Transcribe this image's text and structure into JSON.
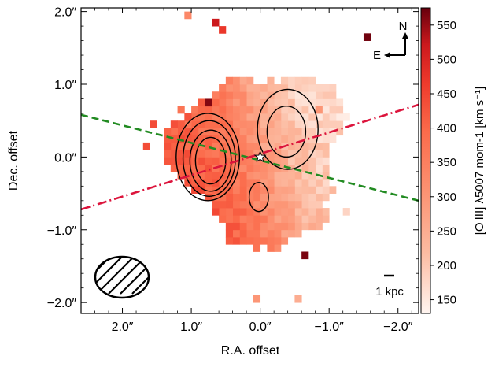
{
  "chart_data": {
    "type": "heatmap",
    "xlabel": "R.A. offset",
    "ylabel": "Dec. offset",
    "xlim": [
      2.6,
      -2.3
    ],
    "ylim": [
      -2.15,
      2.05
    ],
    "x_ticks": [
      {
        "value": 2.0,
        "label": "2.0″"
      },
      {
        "value": 1.0,
        "label": "1.0″"
      },
      {
        "value": 0.0,
        "label": "0.0″"
      },
      {
        "value": -1.0,
        "label": "−1.0″"
      },
      {
        "value": -2.0,
        "label": "−2.0″"
      }
    ],
    "y_ticks": [
      {
        "value": 2.0,
        "label": "2.0″"
      },
      {
        "value": 1.0,
        "label": "1.0″"
      },
      {
        "value": 0.0,
        "label": "0.0″"
      },
      {
        "value": -1.0,
        "label": "−1.0″"
      },
      {
        "value": -2.0,
        "label": "−2.0″"
      }
    ],
    "colorbar": {
      "label": "[O III] λ5007 mom-1 [km s⁻¹]",
      "range": [
        130,
        575
      ],
      "ticks": [
        150,
        200,
        250,
        300,
        350,
        400,
        450,
        500,
        550
      ]
    },
    "pixel_size_arcsec": 0.1,
    "map_model": {
      "description": "velocity field: redshifted east (high values), blueshifted west (low values), gradient across center",
      "center_value": 300
    },
    "outlier_pixels": [
      {
        "x": 1.05,
        "y": 1.95,
        "value": 330
      },
      {
        "x": 0.65,
        "y": 1.85,
        "value": 520
      },
      {
        "x": 0.55,
        "y": 1.75,
        "value": 470
      },
      {
        "x": 0.75,
        "y": 0.75,
        "value": 560
      },
      {
        "x": 0.85,
        "y": 0.65,
        "value": 400
      },
      {
        "x": -0.85,
        "y": 0.65,
        "value": 300
      },
      {
        "x": -1.55,
        "y": 1.65,
        "value": 570
      },
      {
        "x": -0.65,
        "y": -1.35,
        "value": 565
      },
      {
        "x": 1.55,
        "y": 0.45,
        "value": 440
      },
      {
        "x": 1.65,
        "y": 0.15,
        "value": 440
      },
      {
        "x": 0.05,
        "y": -1.95,
        "value": 300
      },
      {
        "x": -0.55,
        "y": -1.95,
        "value": 250
      },
      {
        "x": -1.25,
        "y": -0.75,
        "value": 180
      }
    ],
    "lines": [
      {
        "name": "green-dashed-axis",
        "style": "dashed",
        "color": "#228b22",
        "points": [
          [
            2.6,
            0.58
          ],
          [
            -2.3,
            -0.6
          ]
        ]
      },
      {
        "name": "crimson-dashdot-axis",
        "style": "dashdot",
        "color": "#dc143c",
        "points": [
          [
            2.6,
            -0.72
          ],
          [
            -2.3,
            0.72
          ]
        ]
      }
    ],
    "contours": [
      {
        "name": "east-contour-1",
        "cx": 0.72,
        "cy": -0.05,
        "rx": 0.22,
        "ry": 0.32
      },
      {
        "name": "east-contour-2",
        "cx": 0.72,
        "cy": -0.05,
        "rx": 0.3,
        "ry": 0.42
      },
      {
        "name": "east-contour-3",
        "cx": 0.74,
        "cy": -0.02,
        "rx": 0.38,
        "ry": 0.52
      },
      {
        "name": "east-contour-4",
        "cx": 0.76,
        "cy": 0.0,
        "rx": 0.46,
        "ry": 0.6
      },
      {
        "name": "west-contour-1",
        "cx": -0.38,
        "cy": 0.35,
        "rx": 0.28,
        "ry": 0.35
      },
      {
        "name": "west-contour-2",
        "cx": -0.4,
        "cy": 0.38,
        "rx": 0.44,
        "ry": 0.55
      },
      {
        "name": "south-contour",
        "cx": 0.02,
        "cy": -0.55,
        "rx": 0.14,
        "ry": 0.2
      }
    ],
    "nucleus_marker": {
      "x": 0.0,
      "y": 0.0
    },
    "beam": {
      "label": "beam"
    },
    "compass": {
      "north": "N",
      "east": "E"
    },
    "scale_bar": {
      "label": "1 kpc"
    }
  }
}
